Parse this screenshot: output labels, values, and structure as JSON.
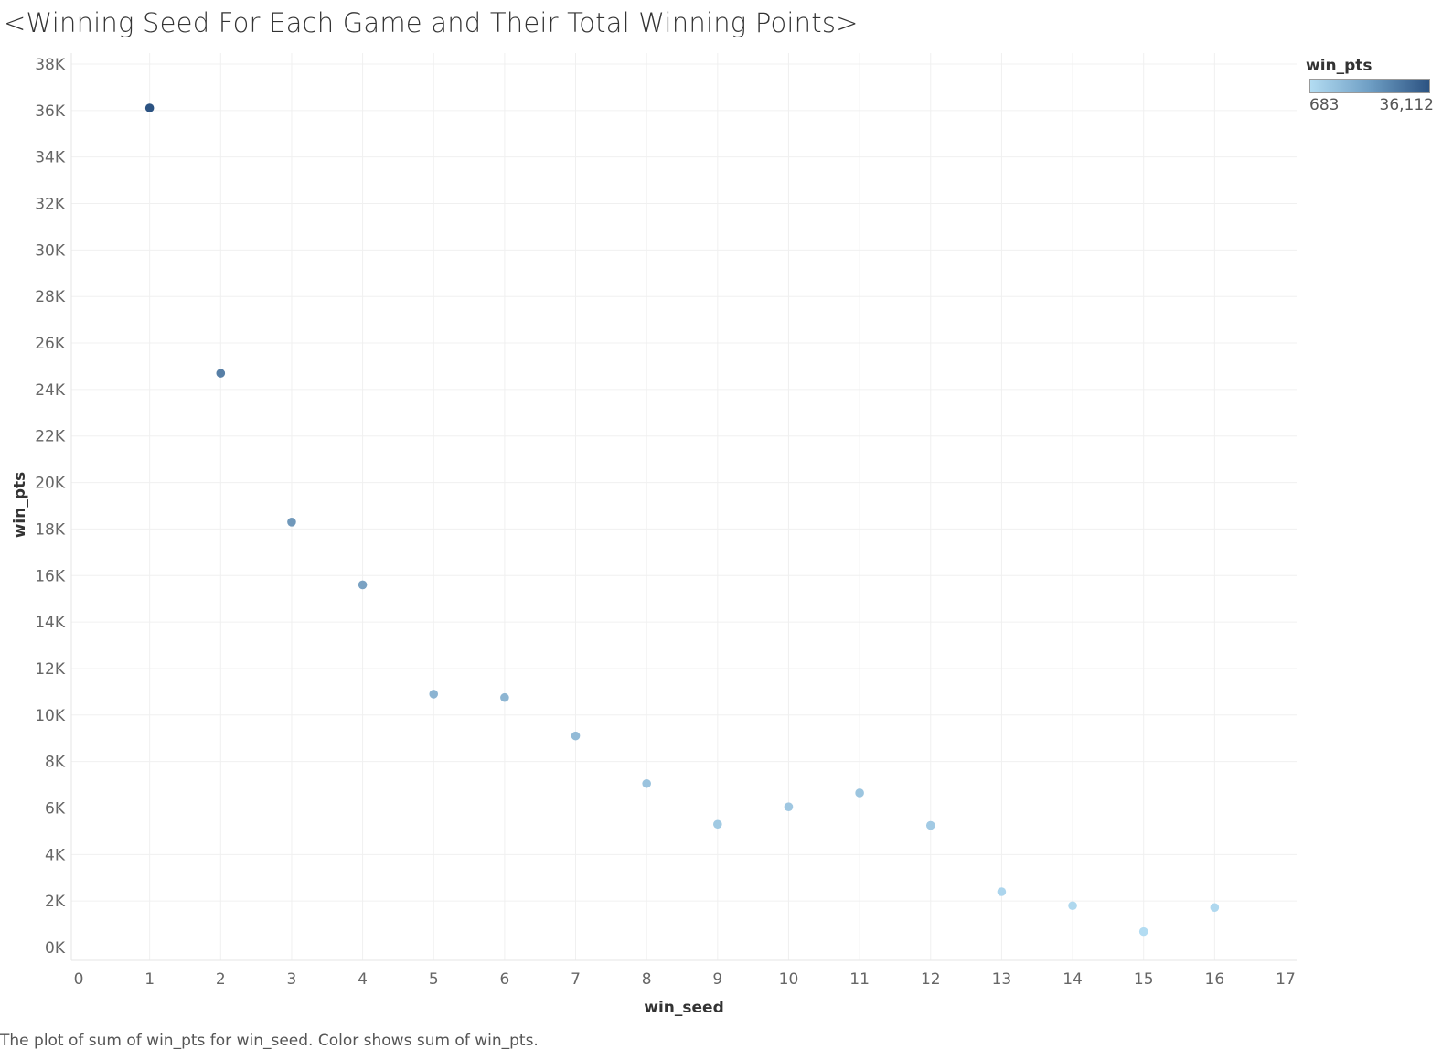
{
  "chart_data": {
    "type": "scatter",
    "title": "<Winning Seed For Each Game and Their Total Winning Points>",
    "caption": "The plot of sum of win_pts for win_seed.  Color shows sum of win_pts.",
    "xlabel": "win_seed",
    "ylabel": "win_pts",
    "xlim": [
      0,
      17
    ],
    "ylim": [
      0,
      38000
    ],
    "x_ticks": [
      "0",
      "1",
      "2",
      "3",
      "4",
      "5",
      "6",
      "7",
      "8",
      "9",
      "10",
      "11",
      "12",
      "13",
      "14",
      "15",
      "16",
      "17"
    ],
    "y_ticks": [
      "0K",
      "2K",
      "4K",
      "6K",
      "8K",
      "10K",
      "12K",
      "14K",
      "16K",
      "18K",
      "20K",
      "22K",
      "24K",
      "26K",
      "28K",
      "30K",
      "32K",
      "34K",
      "36K",
      "38K"
    ],
    "grid": true,
    "legend": {
      "title": "win_pts",
      "placement": "top-right",
      "min_label": "683",
      "max_label": "36,112",
      "min_value": 683,
      "max_value": 36112,
      "color_low": "#b3dcf2",
      "color_high": "#2c5382"
    },
    "points": [
      {
        "x": 1,
        "y": 36112
      },
      {
        "x": 2,
        "y": 24700
      },
      {
        "x": 3,
        "y": 18300
      },
      {
        "x": 4,
        "y": 15600
      },
      {
        "x": 5,
        "y": 10900
      },
      {
        "x": 6,
        "y": 10750
      },
      {
        "x": 7,
        "y": 9100
      },
      {
        "x": 8,
        "y": 7050
      },
      {
        "x": 9,
        "y": 5300
      },
      {
        "x": 10,
        "y": 6050
      },
      {
        "x": 11,
        "y": 6650
      },
      {
        "x": 12,
        "y": 5250
      },
      {
        "x": 13,
        "y": 2400
      },
      {
        "x": 14,
        "y": 1800
      },
      {
        "x": 15,
        "y": 683
      },
      {
        "x": 16,
        "y": 1720
      }
    ]
  }
}
